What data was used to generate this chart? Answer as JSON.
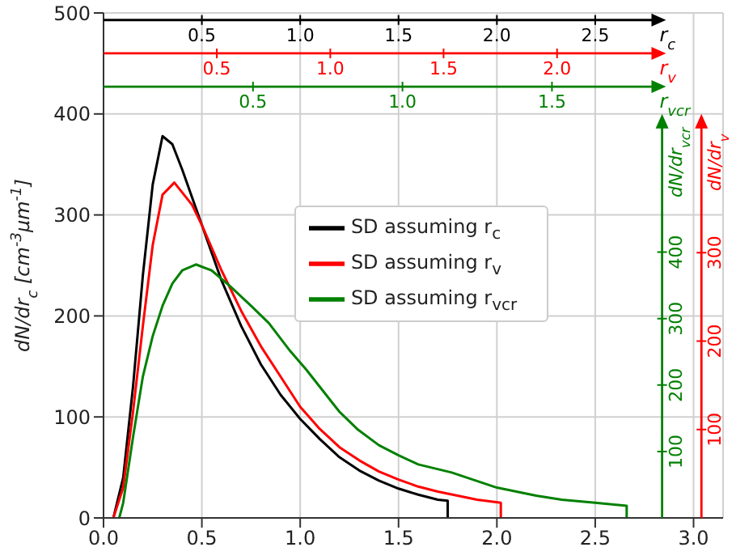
{
  "chart_data": {
    "type": "line",
    "ylabel": "dN/dr$_{c}$ [cm$^{-3}$μm$^{-1}$]",
    "xlim": [
      0,
      3.15
    ],
    "xticks": [
      {
        "value": 0,
        "label": "0.0"
      },
      0.5,
      {
        "value": 1,
        "label": "1.0"
      },
      1.5,
      {
        "value": 2,
        "label": "2.0"
      },
      2.5,
      {
        "value": 3,
        "label": "3.0"
      }
    ],
    "ylim": [
      0,
      500
    ],
    "yticks": [
      0,
      100,
      200,
      300,
      400,
      500
    ],
    "x2label": "r$_{c}$",
    "x2lim": [
      0,
      3.15
    ],
    "x2ticks": [
      0.5,
      {
        "value": 1,
        "label": "1.0"
      },
      1.5,
      {
        "value": 2,
        "label": "2.0"
      },
      2.5
    ],
    "y2label": "dN/dr$_{vcr}$",
    "y2lim": [
      0,
      760
    ],
    "y2ticks": [
      100,
      200,
      300,
      400
    ],
    "y3label": "dN/dr$_{v}$",
    "y3lim": [
      0,
      571
    ],
    "y3ticks": [
      100,
      200,
      300
    ],
    "annotations": [
      "0.5",
      "1.0",
      "1.5",
      "2.0",
      "r$_{v}$",
      "0.5",
      "1.0",
      "1.5",
      "r$_{vcr}$"
    ],
    "grid": true,
    "legend": "center",
    "marker": "none",
    "line_style": "solid",
    "series": [
      {
        "name": "SD assuming r$_{c}$",
        "color": "#000000",
        "x": [
          0.05,
          0.1,
          0.15,
          0.2,
          0.25,
          0.3,
          0.35,
          0.4,
          0.5,
          0.6,
          0.7,
          0.8,
          0.9,
          1.0,
          1.1,
          1.2,
          1.3,
          1.4,
          1.5,
          1.6,
          1.7,
          1.75,
          1.75
        ],
        "values": [
          0,
          40,
          130,
          240,
          330,
          378,
          370,
          345,
          290,
          235,
          190,
          152,
          122,
          98,
          78,
          60,
          47,
          37,
          29,
          23,
          18,
          17,
          0
        ]
      },
      {
        "name": "SD assuming r$_{v}$",
        "color": "#ff0000",
        "x": [
          0.05,
          0.1,
          0.15,
          0.2,
          0.25,
          0.3,
          0.36,
          0.45,
          0.5,
          0.6,
          0.7,
          0.8,
          0.9,
          1.0,
          1.1,
          1.2,
          1.3,
          1.4,
          1.5,
          1.6,
          1.7,
          1.8,
          1.9,
          2.02,
          2.02
        ],
        "values": [
          0,
          30,
          105,
          190,
          270,
          320,
          332,
          310,
          290,
          245,
          205,
          170,
          140,
          110,
          88,
          70,
          57,
          46,
          38,
          31,
          26,
          22,
          18,
          15,
          0
        ]
      },
      {
        "name": "SD assuming r$_{vcr}$",
        "color": "#008000",
        "x": [
          0.08,
          0.1,
          0.15,
          0.2,
          0.25,
          0.3,
          0.35,
          0.4,
          0.47,
          0.55,
          0.64,
          0.75,
          0.84,
          0.95,
          1.03,
          1.2,
          1.29,
          1.4,
          1.5,
          1.6,
          1.77,
          2.0,
          2.2,
          2.33,
          2.5,
          2.66,
          2.66
        ],
        "values": [
          0,
          15,
          80,
          140,
          180,
          210,
          232,
          245,
          251,
          245,
          230,
          210,
          193,
          165,
          147,
          105,
          88,
          72,
          62,
          53,
          45,
          30,
          22,
          18,
          15,
          12,
          0
        ]
      }
    ]
  }
}
